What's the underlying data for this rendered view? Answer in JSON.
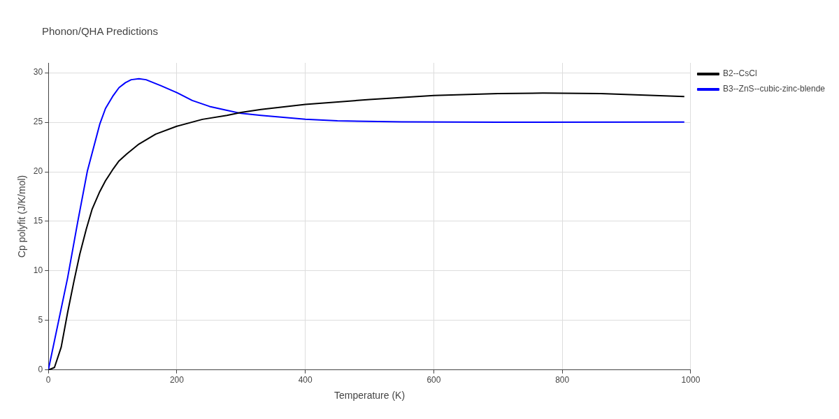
{
  "chart_data": {
    "type": "line",
    "title": "Phonon/QHA Predictions",
    "xlabel": "Temperature (K)",
    "ylabel": "Cp polyfit (J/K/mol)",
    "xlim": [
      0,
      1000
    ],
    "xticks": [
      0,
      200,
      400,
      600,
      800,
      1000
    ],
    "ylim": [
      0,
      31
    ],
    "yticks": [
      0,
      5,
      10,
      15,
      20,
      25,
      30
    ],
    "grid": true,
    "legend": "top right",
    "marker": "none",
    "line_style": "solid",
    "series": [
      {
        "name": "B2--CsCl",
        "color": "#000000",
        "x": [
          0,
          9.5,
          20,
          30,
          40,
          49,
          59,
          68,
          80,
          89,
          101,
          110,
          122,
          141,
          167,
          200,
          240,
          278,
          300,
          331,
          400,
          500,
          600,
          700,
          770,
          860,
          990
        ],
        "values": [
          0,
          0.25,
          2.3,
          5.8,
          9.0,
          11.7,
          14.2,
          16.2,
          18.0,
          19.1,
          20.3,
          21.1,
          21.8,
          22.8,
          23.8,
          24.6,
          25.3,
          25.7,
          26.0,
          26.3,
          26.8,
          27.3,
          27.7,
          27.9,
          27.95,
          27.9,
          27.6
        ]
      },
      {
        "name": "B3--ZnS--cubic-zinc-blende",
        "color": "#0000ff",
        "x": [
          0,
          30,
          45.6,
          60.8,
          80,
          89,
          101,
          110,
          120,
          129,
          141,
          152,
          175,
          200,
          224,
          251,
          278,
          300,
          331,
          400,
          450,
          550,
          700,
          990
        ],
        "values": [
          0,
          9.3,
          14.9,
          20.1,
          24.8,
          26.4,
          27.7,
          28.5,
          29.0,
          29.3,
          29.4,
          29.3,
          28.7,
          28.0,
          27.2,
          26.6,
          26.2,
          25.9,
          25.7,
          25.3,
          25.15,
          25.05,
          25.0,
          25.03
        ]
      }
    ]
  }
}
